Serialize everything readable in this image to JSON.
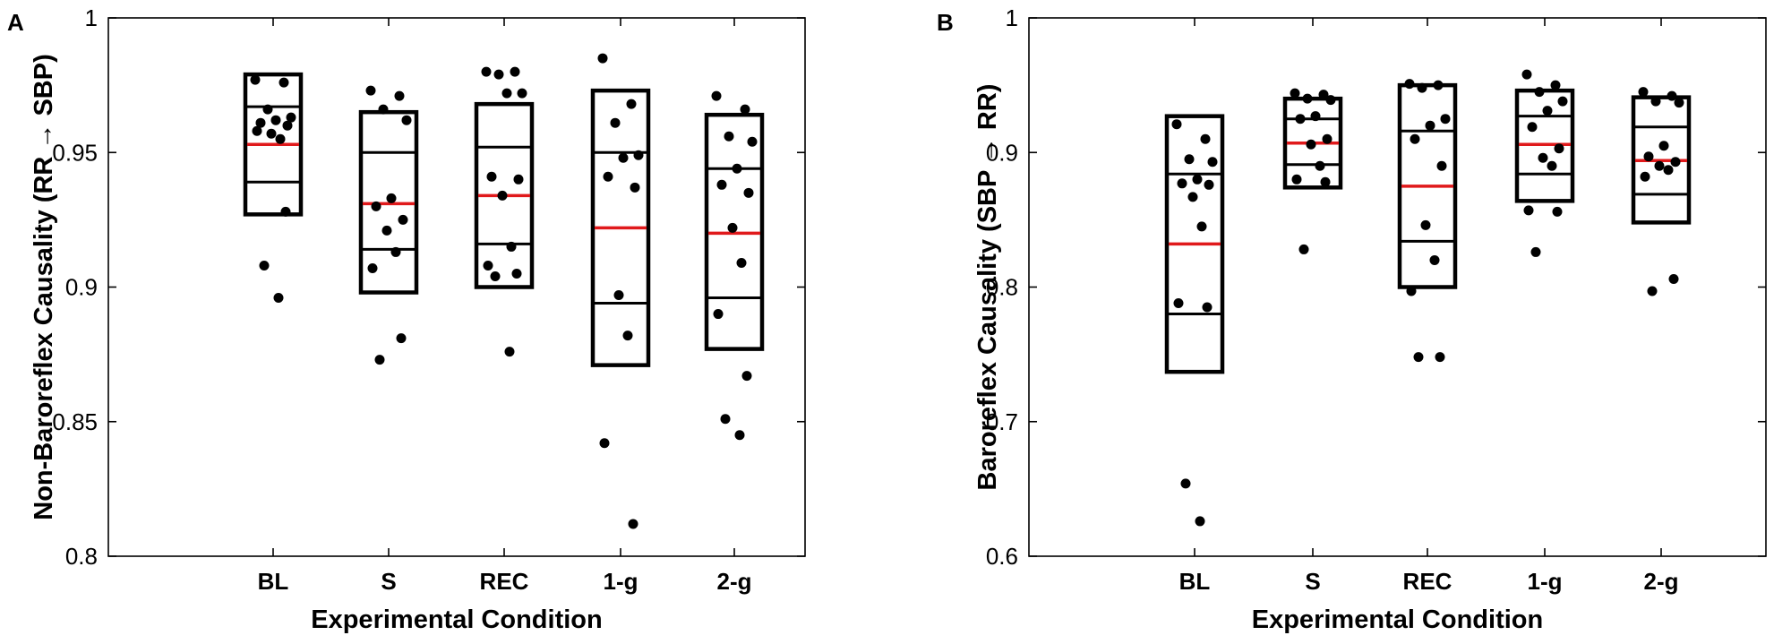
{
  "colors": {
    "axis": "#000000",
    "box": "#000000",
    "median": "#e0191b",
    "point": "#000000"
  },
  "chart_data": [
    {
      "type": "box",
      "panel_label": "A",
      "xlabel": "Experimental Condition",
      "ylabel": "Non-Baroreflex Causality (RR → SBP)",
      "ylim": [
        0.8,
        1.0
      ],
      "yticks": [
        0.8,
        0.85,
        0.9,
        0.95,
        1.0
      ],
      "ytick_labels": [
        "0.8",
        "0.85",
        "0.9",
        "0.95",
        "1"
      ],
      "grid": false,
      "categories": [
        "BL",
        "S",
        "REC",
        "1-g",
        "2-g"
      ],
      "groups": [
        {
          "name": "BL",
          "box_low": 0.927,
          "box_high": 0.979,
          "inner_low": 0.939,
          "inner_high": 0.967,
          "median": 0.953,
          "points": [
            0.977,
            0.976,
            0.966,
            0.963,
            0.962,
            0.961,
            0.96,
            0.957,
            0.955,
            0.958,
            0.928,
            0.908,
            0.896
          ]
        },
        {
          "name": "S",
          "box_low": 0.898,
          "box_high": 0.965,
          "inner_low": 0.914,
          "inner_high": 0.95,
          "median": 0.931,
          "points": [
            0.973,
            0.971,
            0.966,
            0.962,
            0.933,
            0.93,
            0.925,
            0.921,
            0.913,
            0.907,
            0.881,
            0.873
          ]
        },
        {
          "name": "REC",
          "box_low": 0.9,
          "box_high": 0.968,
          "inner_low": 0.916,
          "inner_high": 0.952,
          "median": 0.934,
          "points": [
            0.98,
            0.98,
            0.979,
            0.972,
            0.972,
            0.941,
            0.94,
            0.934,
            0.915,
            0.908,
            0.905,
            0.904,
            0.876
          ]
        },
        {
          "name": "1-g",
          "box_low": 0.871,
          "box_high": 0.973,
          "inner_low": 0.894,
          "inner_high": 0.95,
          "median": 0.922,
          "points": [
            0.985,
            0.968,
            0.961,
            0.949,
            0.948,
            0.941,
            0.937,
            0.897,
            0.882,
            0.842,
            0.812
          ]
        },
        {
          "name": "2-g",
          "box_low": 0.877,
          "box_high": 0.964,
          "inner_low": 0.896,
          "inner_high": 0.944,
          "median": 0.92,
          "points": [
            0.971,
            0.966,
            0.956,
            0.954,
            0.944,
            0.938,
            0.935,
            0.922,
            0.909,
            0.89,
            0.867,
            0.851,
            0.845
          ]
        }
      ]
    },
    {
      "type": "box",
      "panel_label": "B",
      "xlabel": "Experimental Condition",
      "ylabel": "Baroreflex Causality (SBP → RR)",
      "ylim": [
        0.6,
        1.0
      ],
      "yticks": [
        0.6,
        0.7,
        0.8,
        0.9,
        1.0
      ],
      "ytick_labels": [
        "0.6",
        "0.7",
        "0.8",
        "0.9",
        "1"
      ],
      "grid": false,
      "categories": [
        "BL",
        "S",
        "REC",
        "1-g",
        "2-g"
      ],
      "groups": [
        {
          "name": "BL",
          "box_low": 0.737,
          "box_high": 0.927,
          "inner_low": 0.78,
          "inner_high": 0.884,
          "median": 0.832,
          "points": [
            0.921,
            0.91,
            0.895,
            0.893,
            0.88,
            0.877,
            0.876,
            0.867,
            0.845,
            0.788,
            0.785,
            0.654,
            0.626
          ]
        },
        {
          "name": "S",
          "box_low": 0.874,
          "box_high": 0.94,
          "inner_low": 0.891,
          "inner_high": 0.925,
          "median": 0.907,
          "points": [
            0.944,
            0.943,
            0.94,
            0.939,
            0.927,
            0.925,
            0.91,
            0.906,
            0.89,
            0.88,
            0.878,
            0.828
          ]
        },
        {
          "name": "REC",
          "box_low": 0.8,
          "box_high": 0.95,
          "inner_low": 0.834,
          "inner_high": 0.916,
          "median": 0.875,
          "points": [
            0.951,
            0.95,
            0.948,
            0.925,
            0.92,
            0.91,
            0.89,
            0.846,
            0.82,
            0.797,
            0.748,
            0.748
          ]
        },
        {
          "name": "1-g",
          "box_low": 0.864,
          "box_high": 0.946,
          "inner_low": 0.884,
          "inner_high": 0.927,
          "median": 0.906,
          "points": [
            0.958,
            0.95,
            0.945,
            0.938,
            0.931,
            0.919,
            0.903,
            0.896,
            0.89,
            0.857,
            0.856,
            0.826
          ]
        },
        {
          "name": "2-g",
          "box_low": 0.848,
          "box_high": 0.941,
          "inner_low": 0.869,
          "inner_high": 0.919,
          "median": 0.894,
          "points": [
            0.945,
            0.942,
            0.938,
            0.937,
            0.905,
            0.897,
            0.893,
            0.89,
            0.887,
            0.882,
            0.806,
            0.797
          ]
        }
      ]
    }
  ]
}
